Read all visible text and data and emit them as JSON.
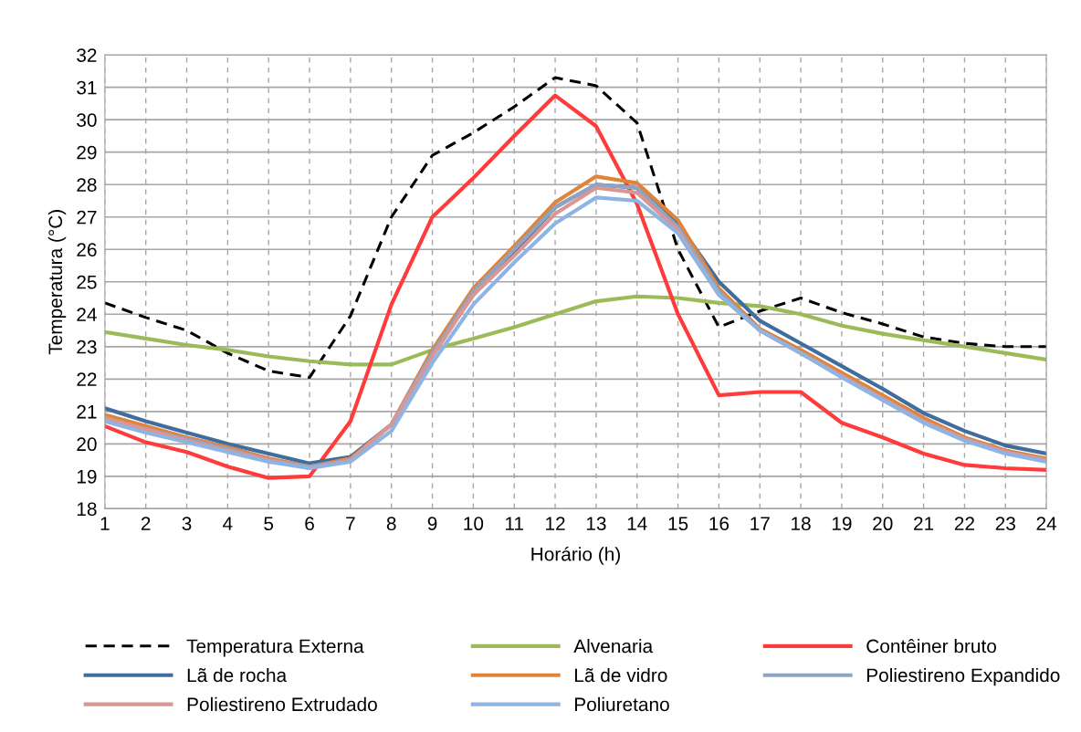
{
  "chart_data": {
    "type": "line",
    "xlabel": "Horário (h)",
    "ylabel": "Temperatura (°C)",
    "x": [
      1,
      2,
      3,
      4,
      5,
      6,
      7,
      8,
      9,
      10,
      11,
      12,
      13,
      14,
      15,
      16,
      17,
      18,
      19,
      20,
      21,
      22,
      23,
      24
    ],
    "xlim": [
      1,
      24
    ],
    "xticks": [
      1,
      2,
      3,
      4,
      5,
      6,
      7,
      8,
      9,
      10,
      11,
      12,
      13,
      14,
      15,
      16,
      17,
      18,
      19,
      20,
      21,
      22,
      23,
      24
    ],
    "ylim": [
      18,
      32
    ],
    "yticks": [
      18,
      19,
      20,
      21,
      22,
      23,
      24,
      25,
      26,
      27,
      28,
      29,
      30,
      31,
      32
    ],
    "grid": true,
    "legend": "bottom",
    "marker": "none",
    "line_style": "solid",
    "series": [
      {
        "name": "Temperatura Externa",
        "color": "#000000",
        "line_style": "dashed",
        "values": [
          24.35,
          23.9,
          23.5,
          22.8,
          22.25,
          22.05,
          23.95,
          27.0,
          28.9,
          29.6,
          30.4,
          31.3,
          31.05,
          29.9,
          26.0,
          23.6,
          24.1,
          24.5,
          24.05,
          23.7,
          23.3,
          23.1,
          23.0,
          23.0
        ]
      },
      {
        "name": "Alvenaria",
        "color": "#9bbb59",
        "values": [
          23.45,
          23.25,
          23.05,
          22.9,
          22.7,
          22.55,
          22.45,
          22.45,
          22.9,
          23.25,
          23.6,
          24.0,
          24.4,
          24.55,
          24.5,
          24.35,
          24.25,
          24.0,
          23.65,
          23.4,
          23.2,
          23.0,
          22.8,
          22.6
        ]
      },
      {
        "name": "Contêiner bruto",
        "color": "#ff3b3b",
        "values": [
          20.55,
          20.05,
          19.75,
          19.3,
          18.95,
          19.0,
          20.7,
          24.3,
          27.0,
          28.2,
          29.5,
          30.75,
          29.8,
          27.4,
          24.0,
          21.5,
          21.6,
          21.6,
          20.65,
          20.2,
          19.7,
          19.35,
          19.25,
          19.2
        ]
      },
      {
        "name": "Lã de rocha",
        "color": "#3f6d9e",
        "values": [
          21.1,
          20.7,
          20.35,
          20.0,
          19.7,
          19.4,
          19.6,
          20.6,
          22.8,
          24.6,
          25.9,
          27.3,
          28.0,
          27.9,
          26.8,
          25.0,
          23.8,
          23.1,
          22.4,
          21.7,
          20.95,
          20.4,
          19.95,
          19.7
        ]
      },
      {
        "name": "Lã de vidro",
        "color": "#e0843a",
        "values": [
          20.9,
          20.55,
          20.2,
          19.9,
          19.55,
          19.3,
          19.55,
          20.6,
          22.9,
          24.8,
          26.1,
          27.45,
          28.25,
          28.05,
          26.9,
          24.8,
          23.55,
          22.9,
          22.2,
          21.5,
          20.8,
          20.2,
          19.8,
          19.55
        ]
      },
      {
        "name": "Poliestireno Expandido",
        "color": "#8ea5c2",
        "values": [
          20.8,
          20.45,
          20.15,
          19.85,
          19.5,
          19.3,
          19.5,
          20.6,
          22.8,
          24.7,
          26.0,
          27.3,
          28.0,
          27.9,
          26.7,
          24.7,
          23.5,
          22.8,
          22.1,
          21.4,
          20.7,
          20.15,
          19.75,
          19.5
        ]
      },
      {
        "name": "Poliestireno Extrudado",
        "color": "#d99694",
        "values": [
          20.8,
          20.45,
          20.1,
          19.8,
          19.5,
          19.25,
          19.5,
          20.6,
          22.7,
          24.6,
          25.8,
          27.1,
          27.9,
          27.75,
          26.6,
          24.6,
          23.5,
          22.8,
          22.1,
          21.4,
          20.7,
          20.15,
          19.75,
          19.5
        ]
      },
      {
        "name": "Poliuretano",
        "color": "#8db4e2",
        "values": [
          20.7,
          20.35,
          20.05,
          19.75,
          19.45,
          19.25,
          19.45,
          20.4,
          22.5,
          24.3,
          25.6,
          26.8,
          27.6,
          27.5,
          26.5,
          24.6,
          23.5,
          22.8,
          22.05,
          21.35,
          20.65,
          20.1,
          19.7,
          19.45
        ]
      }
    ]
  }
}
